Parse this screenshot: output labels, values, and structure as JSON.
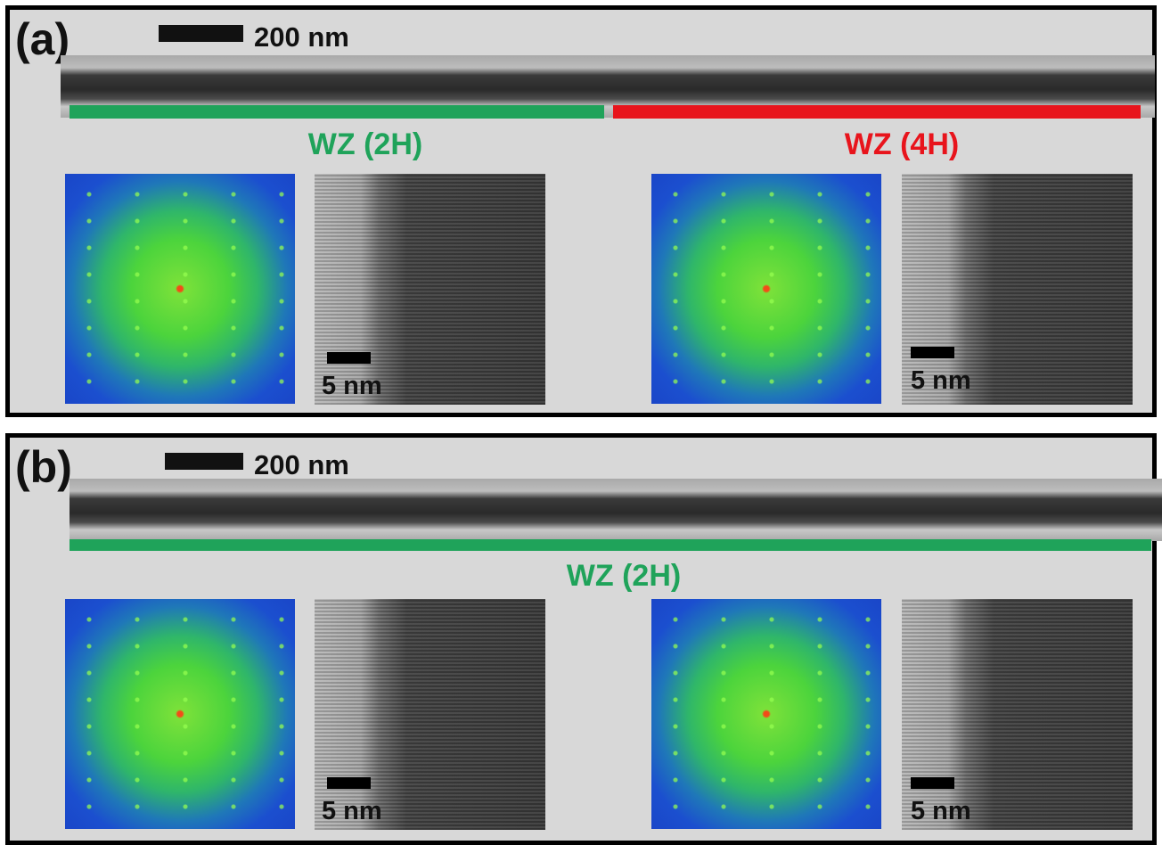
{
  "panels": [
    {
      "label": "(a)",
      "scale_bar": "200 nm",
      "phases": [
        "WZ (2H)",
        "WZ (4H)"
      ],
      "inset_scales": [
        "5 nm",
        "5 nm"
      ]
    },
    {
      "label": "(b)",
      "scale_bar": "200 nm",
      "phases": [
        "WZ (2H)"
      ],
      "inset_scales": [
        "5 nm",
        "5 nm"
      ]
    }
  ]
}
